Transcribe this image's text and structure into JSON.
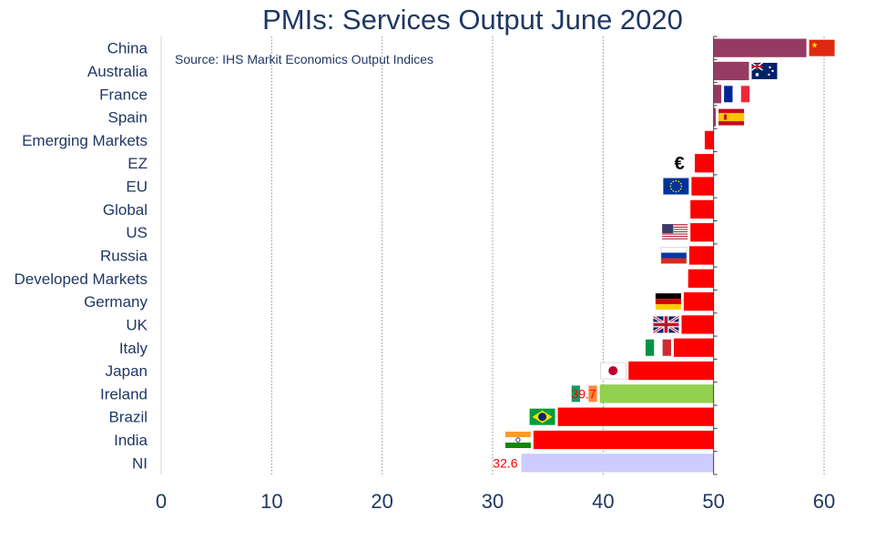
{
  "chart_data": {
    "type": "bar",
    "orientation": "horizontal",
    "title": "PMIs: Services Output June 2020",
    "subtitle": "Source: IHS Markit Economics Output Indices",
    "xlabel": "",
    "ylabel": "",
    "xlim": [
      0,
      60
    ],
    "xticks": [
      0,
      10,
      20,
      30,
      40,
      50,
      60
    ],
    "baseline": 50,
    "grid": "vertical dotted",
    "legend": "none",
    "categories": [
      "China",
      "Australia",
      "France",
      "Spain",
      "Emerging Markets",
      "EZ",
      "EU",
      "Global",
      "US",
      "Russia",
      "Developed Markets",
      "Germany",
      "UK",
      "Italy",
      "Japan",
      "Ireland",
      "Brazil",
      "India",
      "NI"
    ],
    "values": [
      58.4,
      53.2,
      50.7,
      50.2,
      49.2,
      48.3,
      48.0,
      47.9,
      47.9,
      47.8,
      47.7,
      47.3,
      47.1,
      46.4,
      42.3,
      39.7,
      35.9,
      33.7,
      32.6
    ],
    "colors": [
      "#953a63",
      "#953a63",
      "#953a63",
      "#953a63",
      "#ff0000",
      "#ff0000",
      "#ff0000",
      "#ff0000",
      "#ff0000",
      "#ff0000",
      "#ff0000",
      "#ff0000",
      "#ff0000",
      "#ff0000",
      "#ff0000",
      "#92d050",
      "#ff0000",
      "#ff0000",
      "#ccccff"
    ],
    "flags": [
      "china-flag-icon",
      "australia-flag-icon",
      "france-flag-icon",
      "spain-flag-icon",
      "",
      "euro-symbol-icon",
      "eu-flag-icon",
      "",
      "us-flag-icon",
      "russia-flag-icon",
      "",
      "germany-flag-icon",
      "uk-flag-icon",
      "italy-flag-icon",
      "japan-flag-icon",
      "ireland-flag-icon",
      "brazil-flag-icon",
      "india-flag-icon",
      ""
    ],
    "data_labels": {
      "Ireland": "39.7",
      "NI": "32.6"
    },
    "euro_symbol": "€"
  }
}
